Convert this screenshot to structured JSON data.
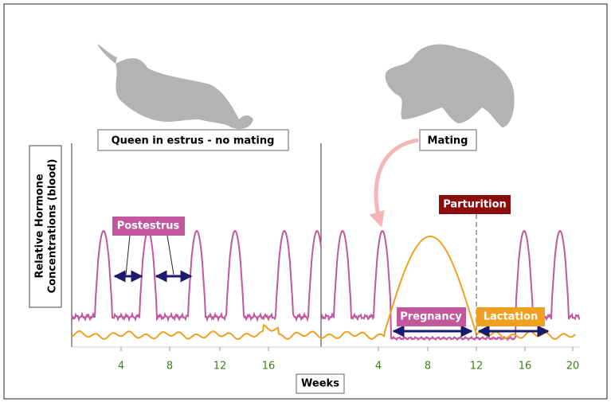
{
  "y_axis_label": [
    "Relative Hormone",
    "Concentrations (blood)"
  ],
  "x_axis_label": "Weeks",
  "panels": [
    {
      "title": "Queen in estrus - no mating",
      "ticks": [
        "4",
        "8",
        "12",
        "16"
      ],
      "annotations": [
        "Postestrus"
      ]
    },
    {
      "title": "Mating",
      "ticks": [
        "4",
        "8",
        "12",
        "16",
        "20"
      ],
      "annotations": [
        "Parturition",
        "Pregnancy",
        "Lactation"
      ]
    }
  ]
}
